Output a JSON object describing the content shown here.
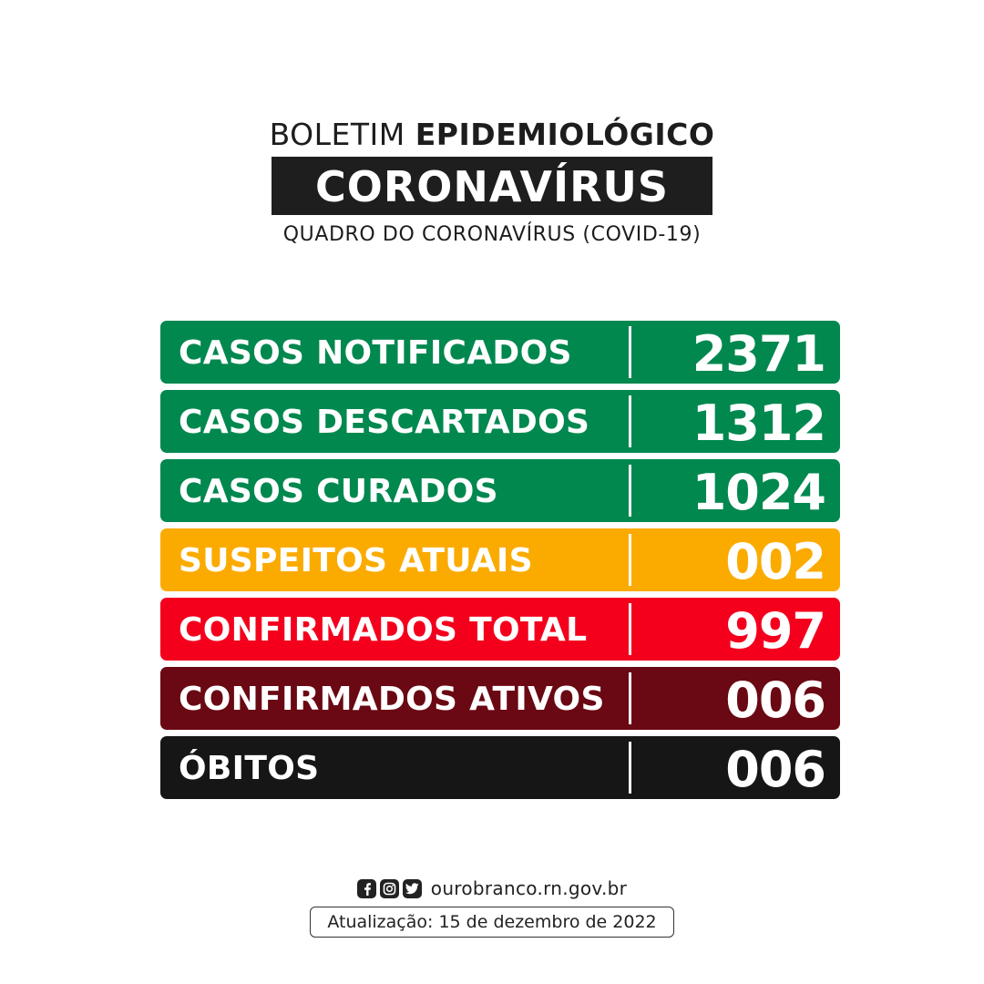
{
  "header": {
    "title_light": "BOLETIM",
    "title_bold": "EPIDEMIOLÓGICO",
    "banner": "CORONAVÍRUS",
    "subtitle": "QUADRO DO CORONAVÍRUS (COVID-19)"
  },
  "rows": [
    {
      "label": "CASOS NOTIFICADOS",
      "value": "2371",
      "color": "#00884f"
    },
    {
      "label": "CASOS DESCARTADOS",
      "value": "1312",
      "color": "#00884f"
    },
    {
      "label": "CASOS CURADOS",
      "value": "1024",
      "color": "#00884f"
    },
    {
      "label": "SUSPEITOS ATUAIS",
      "value": "002",
      "color": "#fbab00"
    },
    {
      "label": "CONFIRMADOS TOTAL",
      "value": "997",
      "color": "#f4001d"
    },
    {
      "label": "CONFIRMADOS ATIVOS",
      "value": "006",
      "color": "#6a0813"
    },
    {
      "label": "ÓBITOS",
      "value": "006",
      "color": "#161616"
    }
  ],
  "footer": {
    "social_icons": [
      "facebook-icon",
      "instagram-icon",
      "twitter-icon"
    ],
    "website": "ourobranco.rn.gov.br",
    "update": "Atualização: 15 de dezembro de 2022"
  }
}
